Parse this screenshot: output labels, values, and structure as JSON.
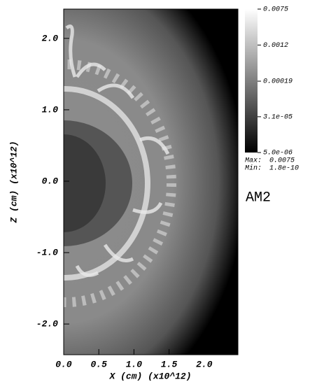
{
  "chart_data": {
    "type": "image",
    "xlabel": "X (cm) (x10^12)",
    "ylabel": "Z (cm) (x10^12)",
    "xlim": [
      0,
      2.48
    ],
    "ylim": [
      -2.43,
      2.41
    ],
    "xticks": [
      {
        "value": 0,
        "label": "0.0"
      },
      0.5,
      {
        "value": 1,
        "label": "1.0"
      },
      1.5,
      {
        "value": 2,
        "label": "2.0"
      }
    ],
    "yticks": [
      {
        "value": -2,
        "label": "-2.0"
      },
      {
        "value": -1,
        "label": "-1.0"
      },
      {
        "value": 0,
        "label": "0.0"
      },
      {
        "value": 1,
        "label": "1.0"
      },
      {
        "value": 2,
        "label": "2.0"
      }
    ],
    "colorbar": {
      "lim": [
        5e-06,
        0.0075
      ],
      "log": true,
      "colors": [
        "#000000",
        "#ffffff"
      ],
      "ticks": [
        0.0075,
        0.0012,
        0.00019,
        {
          "value": 3.1e-05,
          "label": "3.1e-05"
        },
        {
          "value": 5e-06,
          "label": "5.0e-06"
        }
      ]
    },
    "max_label": "Max:",
    "max": 0.0075,
    "min_label": "Min:",
    "min": 1.8e-10,
    "annotation": "AM2"
  }
}
